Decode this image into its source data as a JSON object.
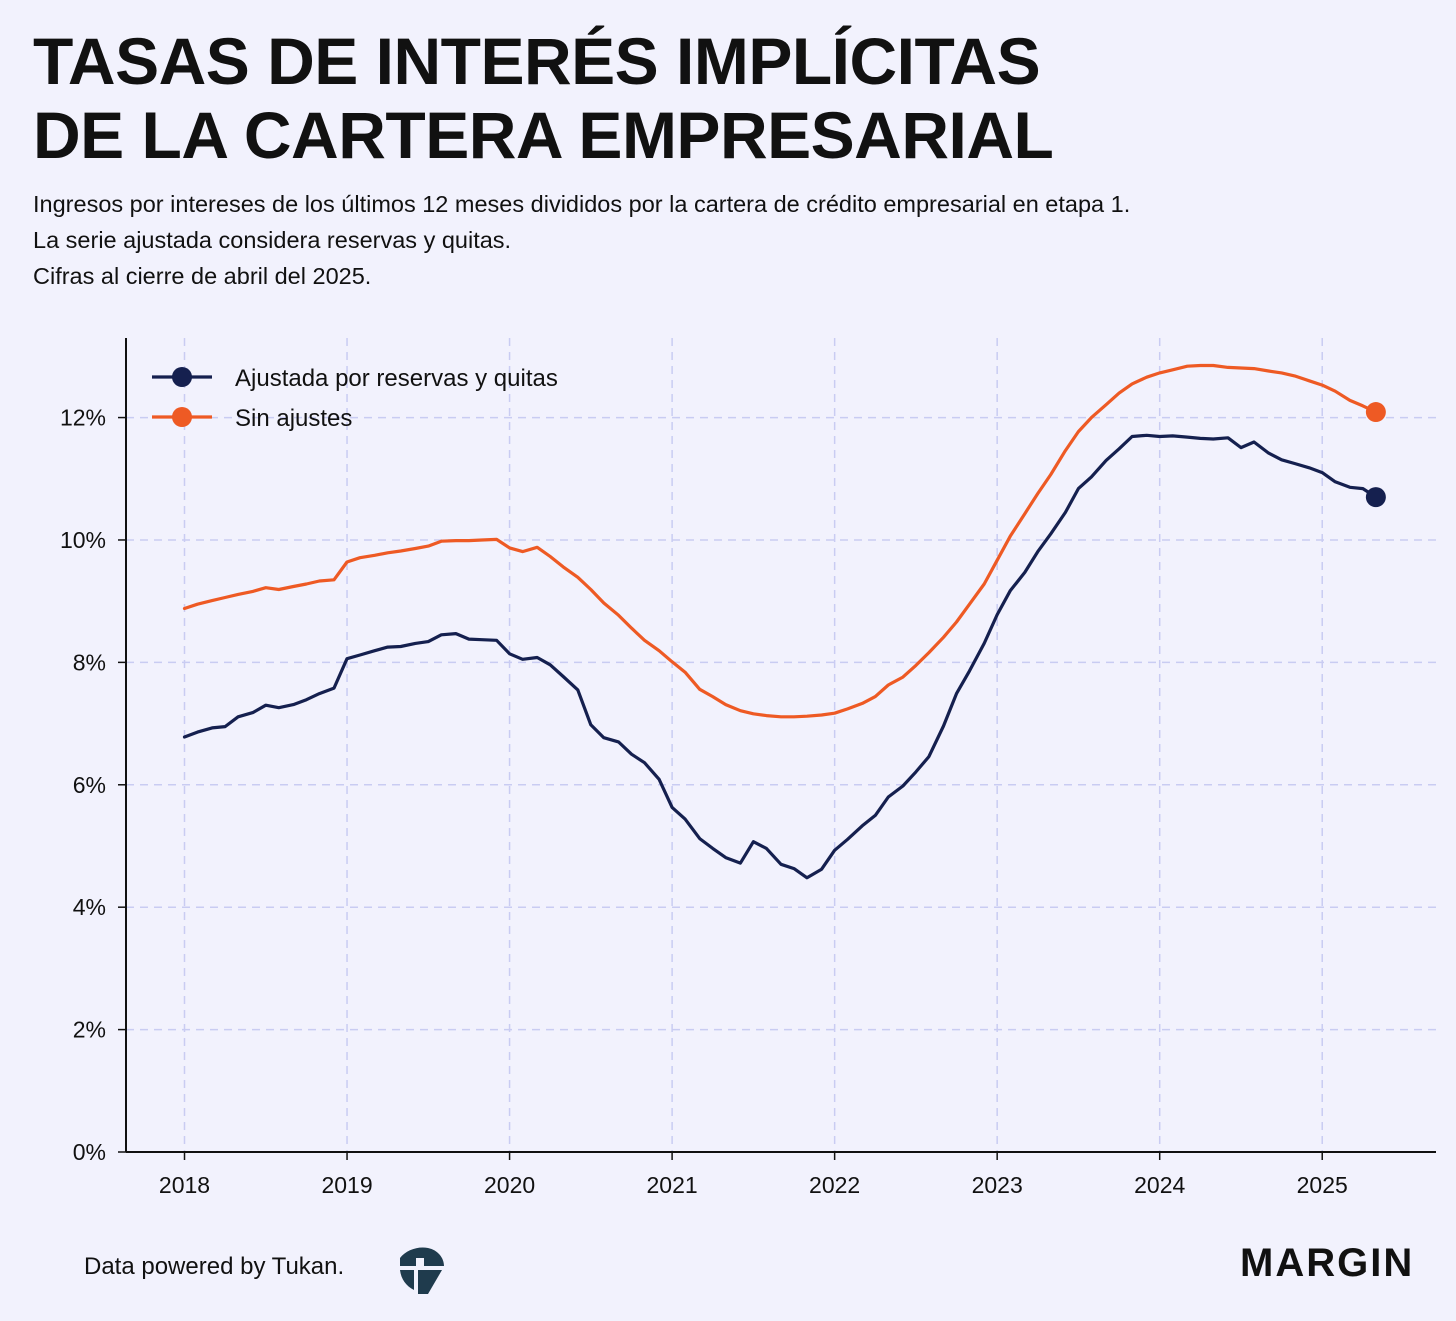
{
  "header": {
    "title_line1": "TASAS DE INTERÉS IMPLÍCITAS",
    "title_line2": "DE LA CARTERA EMPRESARIAL",
    "subtitle_line1": "Ingresos por intereses de los últimos 12 meses divididos por la cartera de crédito empresarial en etapa 1.",
    "subtitle_line2": "La serie ajustada considera reservas y quitas.",
    "subtitle_line3": "Cifras al cierre de abril del 2025."
  },
  "footer": {
    "credit": "Data powered by Tukan.",
    "brand": "MARGIN"
  },
  "colors": {
    "background": "#f2f2fd",
    "adjusted": "#15204f",
    "unadjusted": "#ee5a24",
    "grid": "#c9ccf2",
    "axis": "#111111"
  },
  "chart_data": {
    "type": "line",
    "x_ticks": [
      "2018",
      "2019",
      "2020",
      "2021",
      "2022",
      "2023",
      "2024",
      "2025"
    ],
    "y_ticks": [
      "0%",
      "2%",
      "4%",
      "6%",
      "8%",
      "10%",
      "12%"
    ],
    "ylim": [
      0,
      13.3
    ],
    "xlim": [
      2017.64,
      2025.7
    ],
    "grid": true,
    "legend_position": "top-left",
    "series": [
      {
        "name": "Ajustada por reservas y quitas",
        "color": "#15204f",
        "end_marker": true,
        "points": [
          [
            2018.0,
            6.78
          ],
          [
            2018.08,
            6.86
          ],
          [
            2018.17,
            6.93
          ],
          [
            2018.25,
            6.95
          ],
          [
            2018.33,
            7.11
          ],
          [
            2018.42,
            7.18
          ],
          [
            2018.5,
            7.3
          ],
          [
            2018.58,
            7.26
          ],
          [
            2018.67,
            7.31
          ],
          [
            2018.75,
            7.39
          ],
          [
            2018.83,
            7.49
          ],
          [
            2018.92,
            7.58
          ],
          [
            2019.0,
            8.06
          ],
          [
            2019.08,
            8.12
          ],
          [
            2019.17,
            8.19
          ],
          [
            2019.25,
            8.25
          ],
          [
            2019.33,
            8.26
          ],
          [
            2019.42,
            8.31
          ],
          [
            2019.5,
            8.34
          ],
          [
            2019.58,
            8.45
          ],
          [
            2019.67,
            8.47
          ],
          [
            2019.75,
            8.38
          ],
          [
            2019.83,
            8.37
          ],
          [
            2019.92,
            8.36
          ],
          [
            2020.0,
            8.14
          ],
          [
            2020.08,
            8.05
          ],
          [
            2020.17,
            8.08
          ],
          [
            2020.25,
            7.96
          ],
          [
            2020.33,
            7.77
          ],
          [
            2020.42,
            7.55
          ],
          [
            2020.5,
            6.98
          ],
          [
            2020.58,
            6.77
          ],
          [
            2020.67,
            6.7
          ],
          [
            2020.75,
            6.5
          ],
          [
            2020.83,
            6.36
          ],
          [
            2020.92,
            6.09
          ],
          [
            2021.0,
            5.63
          ],
          [
            2021.08,
            5.44
          ],
          [
            2021.17,
            5.12
          ],
          [
            2021.25,
            4.96
          ],
          [
            2021.33,
            4.81
          ],
          [
            2021.42,
            4.72
          ],
          [
            2021.5,
            5.07
          ],
          [
            2021.58,
            4.96
          ],
          [
            2021.67,
            4.7
          ],
          [
            2021.75,
            4.63
          ],
          [
            2021.83,
            4.48
          ],
          [
            2021.92,
            4.62
          ],
          [
            2022.0,
            4.93
          ],
          [
            2022.08,
            5.11
          ],
          [
            2022.17,
            5.33
          ],
          [
            2022.25,
            5.5
          ],
          [
            2022.33,
            5.8
          ],
          [
            2022.42,
            5.98
          ],
          [
            2022.5,
            6.21
          ],
          [
            2022.58,
            6.46
          ],
          [
            2022.67,
            6.96
          ],
          [
            2022.75,
            7.49
          ],
          [
            2022.83,
            7.86
          ],
          [
            2022.92,
            8.31
          ],
          [
            2023.0,
            8.78
          ],
          [
            2023.08,
            9.17
          ],
          [
            2023.17,
            9.47
          ],
          [
            2023.25,
            9.81
          ],
          [
            2023.33,
            10.1
          ],
          [
            2023.42,
            10.45
          ],
          [
            2023.5,
            10.84
          ],
          [
            2023.58,
            11.03
          ],
          [
            2023.67,
            11.3
          ],
          [
            2023.75,
            11.49
          ],
          [
            2023.83,
            11.69
          ],
          [
            2023.92,
            11.71
          ],
          [
            2024.0,
            11.69
          ],
          [
            2024.08,
            11.7
          ],
          [
            2024.17,
            11.68
          ],
          [
            2024.25,
            11.66
          ],
          [
            2024.33,
            11.65
          ],
          [
            2024.42,
            11.67
          ],
          [
            2024.5,
            11.51
          ],
          [
            2024.58,
            11.6
          ],
          [
            2024.67,
            11.42
          ],
          [
            2024.75,
            11.31
          ],
          [
            2024.83,
            11.25
          ],
          [
            2024.92,
            11.18
          ],
          [
            2025.0,
            11.1
          ],
          [
            2025.08,
            10.95
          ],
          [
            2025.17,
            10.86
          ],
          [
            2025.25,
            10.84
          ],
          [
            2025.33,
            10.7
          ]
        ]
      },
      {
        "name": "Sin ajustes",
        "color": "#ee5a24",
        "end_marker": true,
        "points": [
          [
            2018.0,
            8.88
          ],
          [
            2018.08,
            8.95
          ],
          [
            2018.17,
            9.01
          ],
          [
            2018.25,
            9.06
          ],
          [
            2018.33,
            9.11
          ],
          [
            2018.42,
            9.16
          ],
          [
            2018.5,
            9.22
          ],
          [
            2018.58,
            9.19
          ],
          [
            2018.67,
            9.24
          ],
          [
            2018.75,
            9.28
          ],
          [
            2018.83,
            9.33
          ],
          [
            2018.92,
            9.35
          ],
          [
            2019.0,
            9.64
          ],
          [
            2019.08,
            9.71
          ],
          [
            2019.17,
            9.75
          ],
          [
            2019.25,
            9.79
          ],
          [
            2019.33,
            9.82
          ],
          [
            2019.42,
            9.86
          ],
          [
            2019.5,
            9.9
          ],
          [
            2019.58,
            9.98
          ],
          [
            2019.67,
            9.99
          ],
          [
            2019.75,
            9.99
          ],
          [
            2019.83,
            10.0
          ],
          [
            2019.92,
            10.01
          ],
          [
            2020.0,
            9.87
          ],
          [
            2020.08,
            9.81
          ],
          [
            2020.17,
            9.88
          ],
          [
            2020.25,
            9.73
          ],
          [
            2020.33,
            9.56
          ],
          [
            2020.42,
            9.39
          ],
          [
            2020.5,
            9.19
          ],
          [
            2020.58,
            8.97
          ],
          [
            2020.67,
            8.77
          ],
          [
            2020.75,
            8.56
          ],
          [
            2020.83,
            8.36
          ],
          [
            2020.92,
            8.19
          ],
          [
            2021.0,
            8.01
          ],
          [
            2021.08,
            7.84
          ],
          [
            2021.17,
            7.56
          ],
          [
            2021.25,
            7.44
          ],
          [
            2021.33,
            7.31
          ],
          [
            2021.42,
            7.21
          ],
          [
            2021.5,
            7.16
          ],
          [
            2021.58,
            7.13
          ],
          [
            2021.67,
            7.11
          ],
          [
            2021.75,
            7.11
          ],
          [
            2021.83,
            7.12
          ],
          [
            2021.92,
            7.14
          ],
          [
            2022.0,
            7.17
          ],
          [
            2022.08,
            7.24
          ],
          [
            2022.17,
            7.33
          ],
          [
            2022.25,
            7.44
          ],
          [
            2022.33,
            7.63
          ],
          [
            2022.42,
            7.76
          ],
          [
            2022.5,
            7.95
          ],
          [
            2022.58,
            8.16
          ],
          [
            2022.67,
            8.41
          ],
          [
            2022.75,
            8.66
          ],
          [
            2022.83,
            8.95
          ],
          [
            2022.92,
            9.28
          ],
          [
            2023.0,
            9.67
          ],
          [
            2023.08,
            10.06
          ],
          [
            2023.17,
            10.43
          ],
          [
            2023.25,
            10.76
          ],
          [
            2023.33,
            11.07
          ],
          [
            2023.42,
            11.46
          ],
          [
            2023.5,
            11.77
          ],
          [
            2023.58,
            12.0
          ],
          [
            2023.67,
            12.21
          ],
          [
            2023.75,
            12.4
          ],
          [
            2023.83,
            12.55
          ],
          [
            2023.92,
            12.66
          ],
          [
            2024.0,
            12.73
          ],
          [
            2024.08,
            12.78
          ],
          [
            2024.17,
            12.84
          ],
          [
            2024.25,
            12.85
          ],
          [
            2024.33,
            12.85
          ],
          [
            2024.42,
            12.82
          ],
          [
            2024.5,
            12.81
          ],
          [
            2024.58,
            12.8
          ],
          [
            2024.67,
            12.76
          ],
          [
            2024.75,
            12.73
          ],
          [
            2024.83,
            12.68
          ],
          [
            2024.92,
            12.6
          ],
          [
            2025.0,
            12.53
          ],
          [
            2025.08,
            12.43
          ],
          [
            2025.17,
            12.28
          ],
          [
            2025.25,
            12.19
          ],
          [
            2025.33,
            12.09
          ]
        ]
      }
    ]
  }
}
